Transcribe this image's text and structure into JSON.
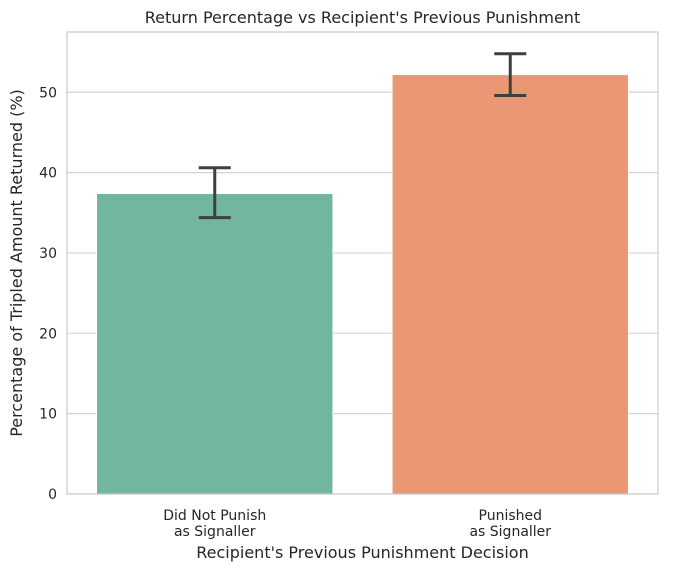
{
  "chart_data": {
    "type": "bar",
    "title": "Return Percentage vs Recipient's Previous Punishment",
    "xlabel": "Recipient's Previous Punishment Decision",
    "ylabel": "Percentage of Tripled Amount Returned (%)",
    "categories": [
      [
        "Did Not Punish",
        "as Signaller"
      ],
      [
        "Punished",
        "as Signaller"
      ]
    ],
    "values": [
      37.4,
      52.2
    ],
    "error_low": [
      34.4,
      49.6
    ],
    "error_high": [
      40.6,
      54.8
    ],
    "colors": [
      "#72b5a0",
      "#e99774"
    ],
    "error_color": "#3f3f3f",
    "ylim": [
      0,
      57.5
    ],
    "yticks": [
      0,
      10,
      20,
      30,
      40,
      50
    ],
    "grid": true,
    "legend": "none"
  }
}
